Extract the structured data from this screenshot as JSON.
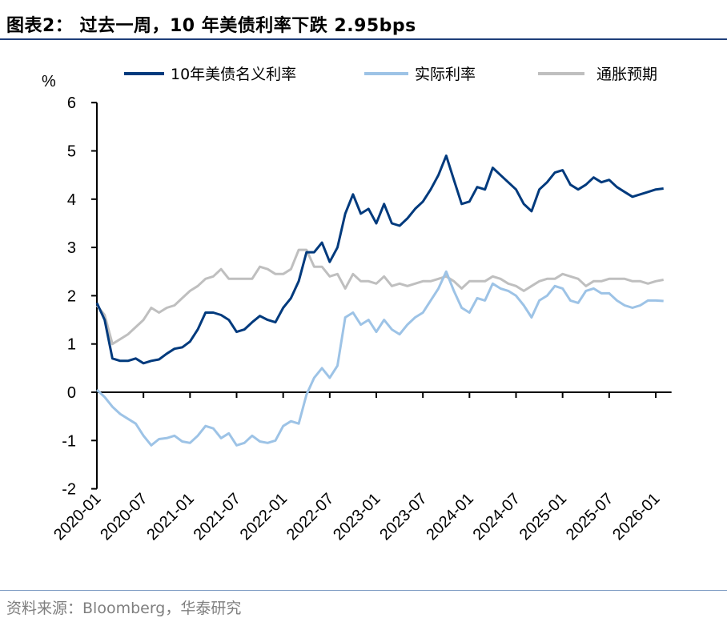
{
  "title": "图表2：  过去一周，10 年美债利率下跌 2.95bps",
  "source": "资料来源：Bloomberg，华泰研究",
  "chart_data": {
    "type": "line",
    "title": "图表2：  过去一周，10 年美债利率下跌 2.95bps",
    "ylabel": "%",
    "xlabel": "",
    "ylim": [
      -2,
      6
    ],
    "yticks": [
      -2,
      -1,
      0,
      1,
      2,
      3,
      4,
      5,
      6
    ],
    "xticks": [
      "2020-01",
      "2020-07",
      "2021-01",
      "2021-07",
      "2022-01",
      "2022-07",
      "2023-01",
      "2023-07",
      "2024-01",
      "2024-07",
      "2025-01",
      "2025-07",
      "2026-01"
    ],
    "xlim": [
      "2020-01",
      "2026-02"
    ],
    "grid": false,
    "legend": "top",
    "x": [
      "2020-01",
      "2020-02",
      "2020-03",
      "2020-04",
      "2020-05",
      "2020-06",
      "2020-07",
      "2020-08",
      "2020-09",
      "2020-10",
      "2020-11",
      "2020-12",
      "2021-01",
      "2021-02",
      "2021-03",
      "2021-04",
      "2021-05",
      "2021-06",
      "2021-07",
      "2021-08",
      "2021-09",
      "2021-10",
      "2021-11",
      "2021-12",
      "2022-01",
      "2022-02",
      "2022-03",
      "2022-04",
      "2022-05",
      "2022-06",
      "2022-07",
      "2022-08",
      "2022-09",
      "2022-10",
      "2022-11",
      "2022-12",
      "2023-01",
      "2023-02",
      "2023-03",
      "2023-04",
      "2023-05",
      "2023-06",
      "2023-07",
      "2023-08",
      "2023-09",
      "2023-10",
      "2023-11",
      "2023-12",
      "2024-01",
      "2024-02",
      "2024-03",
      "2024-04",
      "2024-05",
      "2024-06",
      "2024-07",
      "2024-08",
      "2024-09",
      "2024-10",
      "2024-11",
      "2024-12",
      "2025-01",
      "2025-02",
      "2025-03",
      "2025-04",
      "2025-05",
      "2025-06",
      "2025-07",
      "2025-08",
      "2025-09",
      "2025-10",
      "2025-11",
      "2025-12",
      "2026-01",
      "2026-02"
    ],
    "series": [
      {
        "name": "10年美债名义利率",
        "color": "#003a7d",
        "values": [
          1.85,
          1.5,
          0.7,
          0.65,
          0.65,
          0.7,
          0.6,
          0.65,
          0.68,
          0.8,
          0.9,
          0.93,
          1.05,
          1.3,
          1.65,
          1.65,
          1.6,
          1.5,
          1.25,
          1.3,
          1.45,
          1.58,
          1.5,
          1.45,
          1.75,
          1.95,
          2.3,
          2.9,
          2.9,
          3.1,
          2.7,
          3.0,
          3.7,
          4.1,
          3.7,
          3.8,
          3.5,
          3.9,
          3.5,
          3.45,
          3.6,
          3.8,
          3.95,
          4.2,
          4.5,
          4.9,
          4.4,
          3.9,
          3.95,
          4.25,
          4.2,
          4.65,
          4.5,
          4.35,
          4.2,
          3.9,
          3.75,
          4.2,
          4.35,
          4.55,
          4.6,
          4.3,
          4.2,
          4.3,
          4.45,
          4.35,
          4.4,
          4.25,
          4.15,
          4.05,
          4.1,
          4.15,
          4.2,
          4.22
        ]
      },
      {
        "name": "实际利率",
        "color": "#9dc3e6",
        "values": [
          0.05,
          -0.1,
          -0.3,
          -0.45,
          -0.55,
          -0.65,
          -0.9,
          -1.1,
          -0.97,
          -0.95,
          -0.9,
          -1.02,
          -1.05,
          -0.9,
          -0.7,
          -0.75,
          -0.95,
          -0.85,
          -1.1,
          -1.05,
          -0.9,
          -1.02,
          -1.05,
          -1.0,
          -0.7,
          -0.6,
          -0.65,
          -0.05,
          0.3,
          0.5,
          0.3,
          0.55,
          1.55,
          1.65,
          1.4,
          1.5,
          1.25,
          1.5,
          1.3,
          1.2,
          1.4,
          1.55,
          1.65,
          1.9,
          2.15,
          2.5,
          2.1,
          1.75,
          1.65,
          1.95,
          1.9,
          2.25,
          2.15,
          2.1,
          2.0,
          1.8,
          1.55,
          1.9,
          2.0,
          2.2,
          2.15,
          1.9,
          1.85,
          2.1,
          2.15,
          2.05,
          2.05,
          1.9,
          1.8,
          1.75,
          1.8,
          1.9,
          1.9,
          1.89
        ]
      },
      {
        "name": "通胀预期",
        "color": "#bfbfbf",
        "values": [
          1.8,
          1.6,
          1.0,
          1.1,
          1.2,
          1.35,
          1.5,
          1.75,
          1.65,
          1.75,
          1.8,
          1.95,
          2.1,
          2.2,
          2.35,
          2.4,
          2.55,
          2.35,
          2.35,
          2.35,
          2.35,
          2.6,
          2.55,
          2.45,
          2.45,
          2.55,
          2.95,
          2.95,
          2.6,
          2.6,
          2.4,
          2.45,
          2.15,
          2.45,
          2.3,
          2.3,
          2.25,
          2.4,
          2.2,
          2.25,
          2.2,
          2.25,
          2.3,
          2.3,
          2.35,
          2.4,
          2.3,
          2.15,
          2.3,
          2.3,
          2.3,
          2.4,
          2.35,
          2.25,
          2.2,
          2.1,
          2.2,
          2.3,
          2.35,
          2.35,
          2.45,
          2.4,
          2.35,
          2.2,
          2.3,
          2.3,
          2.35,
          2.35,
          2.35,
          2.3,
          2.3,
          2.25,
          2.3,
          2.33
        ]
      }
    ]
  }
}
